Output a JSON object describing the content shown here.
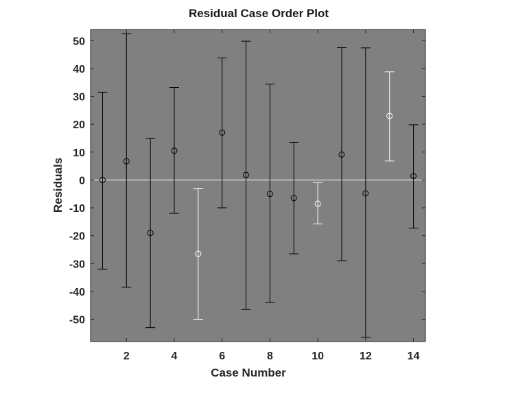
{
  "chart_data": {
    "type": "scatter",
    "title": "Residual Case Order Plot",
    "xlabel": "Case Number",
    "ylabel": "Residuals",
    "xlim": [
      0.5,
      14.5
    ],
    "ylim": [
      -58,
      54
    ],
    "xticks": [
      2,
      4,
      6,
      8,
      10,
      12,
      14
    ],
    "yticks": [
      -50,
      -40,
      -30,
      -20,
      -10,
      0,
      10,
      20,
      30,
      40,
      50
    ],
    "grid": false,
    "background_color": "#808080",
    "zero_line_color": "#ffffff",
    "normal_color": "#000000",
    "outlier_color": "#ffffff",
    "points": [
      {
        "case": 1,
        "residual": 0,
        "lower": -32,
        "upper": 31.5,
        "outlier": false
      },
      {
        "case": 2,
        "residual": 6.7,
        "lower": -38.5,
        "upper": 52.5,
        "outlier": false
      },
      {
        "case": 3,
        "residual": -19,
        "lower": -53,
        "upper": 15,
        "outlier": false
      },
      {
        "case": 4,
        "residual": 10.5,
        "lower": -12,
        "upper": 33.2,
        "outlier": false
      },
      {
        "case": 5,
        "residual": -26.5,
        "lower": -50,
        "upper": -3,
        "outlier": true
      },
      {
        "case": 6,
        "residual": 17,
        "lower": -10,
        "upper": 43.8,
        "outlier": false
      },
      {
        "case": 7,
        "residual": 1.8,
        "lower": -46.5,
        "upper": 49.8,
        "outlier": false
      },
      {
        "case": 8,
        "residual": -5,
        "lower": -44,
        "upper": 34.4,
        "outlier": false
      },
      {
        "case": 9,
        "residual": -6.5,
        "lower": -26.5,
        "upper": 13.5,
        "outlier": false
      },
      {
        "case": 10,
        "residual": -8.5,
        "lower": -15.8,
        "upper": -1,
        "outlier": true
      },
      {
        "case": 11,
        "residual": 9.1,
        "lower": -29,
        "upper": 47.5,
        "outlier": false
      },
      {
        "case": 12,
        "residual": -4.8,
        "lower": -56.5,
        "upper": 47.4,
        "outlier": false
      },
      {
        "case": 13,
        "residual": 23,
        "lower": 6.8,
        "upper": 38.8,
        "outlier": true
      },
      {
        "case": 14,
        "residual": 1.4,
        "lower": -17.3,
        "upper": 19.8,
        "outlier": false
      }
    ]
  }
}
